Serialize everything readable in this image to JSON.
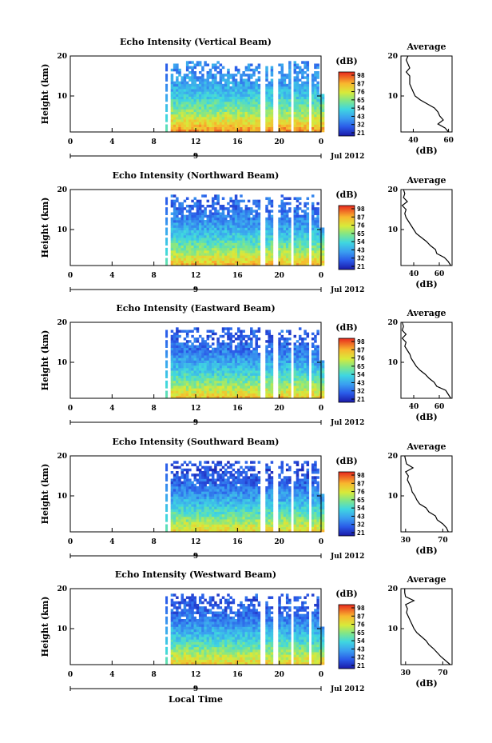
{
  "panels": [
    {
      "title": "Echo Intensity (Vertical Beam)",
      "avg_title": "Average",
      "avg_xticks": [
        "40",
        "60"
      ],
      "avg_xrange": [
        33,
        62
      ],
      "profile": [
        [
          1,
          60
        ],
        [
          2,
          58
        ],
        [
          3,
          54
        ],
        [
          4,
          57
        ],
        [
          5,
          55
        ],
        [
          6,
          54
        ],
        [
          7,
          52
        ],
        [
          8,
          48
        ],
        [
          9,
          44
        ],
        [
          10,
          41
        ],
        [
          11,
          40
        ],
        [
          12,
          39
        ],
        [
          13,
          38
        ],
        [
          14,
          38
        ],
        [
          15,
          38
        ],
        [
          16,
          36
        ],
        [
          17,
          38
        ],
        [
          18,
          37
        ],
        [
          19,
          36
        ],
        [
          20,
          37
        ]
      ]
    },
    {
      "title": "Echo Intensity (Northward Beam)",
      "avg_title": "Average",
      "avg_xticks": [
        "40",
        "60"
      ],
      "avg_xrange": [
        30,
        70
      ],
      "profile": [
        [
          1,
          69
        ],
        [
          2,
          67
        ],
        [
          3,
          64
        ],
        [
          4,
          58
        ],
        [
          5,
          57
        ],
        [
          6,
          53
        ],
        [
          7,
          50
        ],
        [
          8,
          46
        ],
        [
          9,
          42
        ],
        [
          10,
          40
        ],
        [
          11,
          38
        ],
        [
          12,
          36
        ],
        [
          13,
          34
        ],
        [
          14,
          33
        ],
        [
          15,
          34
        ],
        [
          16,
          31
        ],
        [
          17,
          35
        ],
        [
          18,
          32
        ],
        [
          19,
          33
        ],
        [
          20,
          32
        ]
      ]
    },
    {
      "title": "Echo Intensity (Eastward Beam)",
      "avg_title": "Average",
      "avg_xticks": [
        "40",
        "60"
      ],
      "avg_xrange": [
        30,
        70
      ],
      "profile": [
        [
          1,
          69
        ],
        [
          2,
          67
        ],
        [
          3,
          65
        ],
        [
          4,
          58
        ],
        [
          5,
          56
        ],
        [
          6,
          52
        ],
        [
          7,
          49
        ],
        [
          8,
          45
        ],
        [
          9,
          42
        ],
        [
          10,
          40
        ],
        [
          11,
          38
        ],
        [
          12,
          37
        ],
        [
          13,
          35
        ],
        [
          14,
          33
        ],
        [
          15,
          34
        ],
        [
          16,
          31
        ],
        [
          17,
          34
        ],
        [
          18,
          31
        ],
        [
          19,
          32
        ],
        [
          20,
          31
        ]
      ]
    },
    {
      "title": "Echo Intensity (Southward Beam)",
      "avg_title": "Average",
      "avg_xticks": [
        "30",
        "70"
      ],
      "avg_xrange": [
        25,
        80
      ],
      "profile": [
        [
          1,
          76
        ],
        [
          2,
          74
        ],
        [
          3,
          70
        ],
        [
          4,
          64
        ],
        [
          5,
          62
        ],
        [
          6,
          55
        ],
        [
          7,
          52
        ],
        [
          8,
          45
        ],
        [
          9,
          42
        ],
        [
          10,
          40
        ],
        [
          11,
          37
        ],
        [
          12,
          36
        ],
        [
          13,
          34
        ],
        [
          14,
          32
        ],
        [
          15,
          33
        ],
        [
          16,
          30
        ],
        [
          17,
          38
        ],
        [
          18,
          31
        ],
        [
          19,
          30
        ],
        [
          20,
          29
        ]
      ]
    },
    {
      "title": "Echo Intensity (Westward Beam)",
      "avg_title": "Average",
      "avg_xticks": [
        "30",
        "70"
      ],
      "avg_xrange": [
        25,
        80
      ],
      "profile": [
        [
          1,
          78
        ],
        [
          2,
          73
        ],
        [
          3,
          68
        ],
        [
          4,
          64
        ],
        [
          5,
          60
        ],
        [
          6,
          55
        ],
        [
          7,
          52
        ],
        [
          8,
          47
        ],
        [
          9,
          42
        ],
        [
          10,
          39
        ],
        [
          11,
          37
        ],
        [
          12,
          35
        ],
        [
          13,
          33
        ],
        [
          14,
          31
        ],
        [
          15,
          32
        ],
        [
          16,
          30
        ],
        [
          17,
          39
        ],
        [
          18,
          30
        ],
        [
          19,
          29
        ],
        [
          20,
          29
        ]
      ]
    }
  ],
  "ylabel": "Height (km)",
  "yticks": [
    "20",
    "10"
  ],
  "xticks": [
    "0",
    "4",
    "8",
    "12",
    "16",
    "20",
    "0"
  ],
  "date_tick": "9",
  "date_label": "Jul 2012",
  "colorbar": {
    "unit": "(dB)",
    "ticks": [
      "98",
      "87",
      "76",
      "65",
      "54",
      "43",
      "32",
      "21"
    ]
  },
  "avg_xlabel": "(dB)",
  "xlabel": "Local Time",
  "chart_data": [
    {
      "type": "heatmap",
      "title": "Echo Intensity (Vertical Beam)",
      "xlabel": "Local Time",
      "ylabel": "Height (km)",
      "x_range_hours": [
        0,
        24
      ],
      "y_range_km": [
        1,
        20
      ],
      "data_start_hour": 9,
      "colorbar_range_db": [
        21,
        98
      ]
    },
    {
      "type": "line",
      "title": "Average",
      "xlabel": "(dB)",
      "x": [
        60,
        58,
        54,
        57,
        55,
        54,
        52,
        48,
        44,
        41,
        40,
        39,
        38,
        38,
        38,
        36,
        38,
        37,
        36,
        37
      ],
      "y": [
        1,
        2,
        3,
        4,
        5,
        6,
        7,
        8,
        9,
        10,
        11,
        12,
        13,
        14,
        15,
        16,
        17,
        18,
        19,
        20
      ]
    },
    {
      "type": "heatmap",
      "title": "Echo Intensity (Northward Beam)",
      "ylabel": "Height (km)",
      "x_range_hours": [
        0,
        24
      ],
      "y_range_km": [
        1,
        20
      ],
      "data_start_hour": 9,
      "colorbar_range_db": [
        21,
        98
      ]
    },
    {
      "type": "line",
      "title": "Average",
      "xlabel": "(dB)",
      "x": [
        69,
        67,
        64,
        58,
        57,
        53,
        50,
        46,
        42,
        40,
        38,
        36,
        34,
        33,
        34,
        31,
        35,
        32,
        33,
        32
      ],
      "y": [
        1,
        2,
        3,
        4,
        5,
        6,
        7,
        8,
        9,
        10,
        11,
        12,
        13,
        14,
        15,
        16,
        17,
        18,
        19,
        20
      ]
    },
    {
      "type": "heatmap",
      "title": "Echo Intensity (Eastward Beam)",
      "ylabel": "Height (km)",
      "x_range_hours": [
        0,
        24
      ],
      "y_range_km": [
        1,
        20
      ],
      "data_start_hour": 9,
      "colorbar_range_db": [
        21,
        98
      ]
    },
    {
      "type": "line",
      "title": "Average",
      "xlabel": "(dB)",
      "x": [
        69,
        67,
        65,
        58,
        56,
        52,
        49,
        45,
        42,
        40,
        38,
        37,
        35,
        33,
        34,
        31,
        34,
        31,
        32,
        31
      ],
      "y": [
        1,
        2,
        3,
        4,
        5,
        6,
        7,
        8,
        9,
        10,
        11,
        12,
        13,
        14,
        15,
        16,
        17,
        18,
        19,
        20
      ]
    },
    {
      "type": "heatmap",
      "title": "Echo Intensity (Southward Beam)",
      "ylabel": "Height (km)",
      "x_range_hours": [
        0,
        24
      ],
      "y_range_km": [
        1,
        20
      ],
      "data_start_hour": 9,
      "colorbar_range_db": [
        21,
        98
      ]
    },
    {
      "type": "line",
      "title": "Average",
      "xlabel": "(dB)",
      "x": [
        76,
        74,
        70,
        64,
        62,
        55,
        52,
        45,
        42,
        40,
        37,
        36,
        34,
        32,
        33,
        30,
        38,
        31,
        30,
        29
      ],
      "y": [
        1,
        2,
        3,
        4,
        5,
        6,
        7,
        8,
        9,
        10,
        11,
        12,
        13,
        14,
        15,
        16,
        17,
        18,
        19,
        20
      ]
    },
    {
      "type": "heatmap",
      "title": "Echo Intensity (Westward Beam)",
      "ylabel": "Height (km)",
      "x_range_hours": [
        0,
        24
      ],
      "y_range_km": [
        1,
        20
      ],
      "data_start_hour": 9,
      "colorbar_range_db": [
        21,
        98
      ]
    },
    {
      "type": "line",
      "title": "Average",
      "xlabel": "(dB)",
      "x": [
        78,
        73,
        68,
        64,
        60,
        55,
        52,
        47,
        42,
        39,
        37,
        35,
        33,
        31,
        32,
        30,
        39,
        30,
        29,
        29
      ],
      "y": [
        1,
        2,
        3,
        4,
        5,
        6,
        7,
        8,
        9,
        10,
        11,
        12,
        13,
        14,
        15,
        16,
        17,
        18,
        19,
        20
      ]
    }
  ]
}
